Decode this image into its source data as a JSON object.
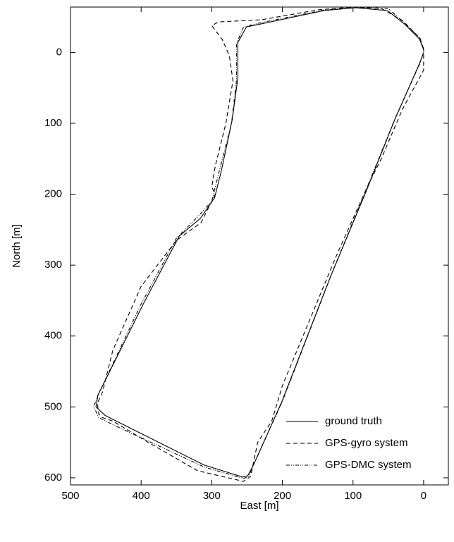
{
  "chart_data": {
    "type": "line",
    "xlabel": "East [m]",
    "ylabel": "North [m]",
    "xlim": [
      500,
      -35
    ],
    "xticks": [
      500,
      400,
      300,
      200,
      100,
      0
    ],
    "ylim": [
      610,
      -64
    ],
    "yticks": [
      0,
      100,
      200,
      300,
      400,
      500,
      600
    ],
    "legend": "lower right",
    "series": [
      {
        "name": "ground truth",
        "color": "#000000",
        "linestyle": "solid",
        "x": [
          0,
          6,
          26,
          51,
          96,
          141,
          226,
          251,
          263,
          263,
          271,
          286,
          296,
          316,
          346,
          396,
          461,
          464,
          451,
          431,
          311,
          256,
          249,
          241,
          201,
          131,
          81,
          41,
          6,
          0
        ],
        "values": [
          -4,
          -19,
          -39,
          -59,
          -63,
          -59,
          -41,
          -36,
          -14,
          36,
          95,
          165,
          205,
          234,
          259,
          353,
          483,
          500,
          512,
          522,
          582,
          599,
          597,
          582,
          493,
          314,
          195,
          95,
          16,
          0
        ]
      },
      {
        "name": "GPS-gyro system",
        "color": "#000000",
        "linestyle": "dashed",
        "x": [
          0,
          5,
          30,
          60,
          100,
          150,
          230,
          290,
          300,
          285,
          275,
          270,
          280,
          295,
          300,
          295,
          315,
          350,
          400,
          440,
          455,
          462,
          460,
          455,
          440,
          390,
          320,
          255,
          245,
          235,
          215,
          200,
          150,
          125,
          80,
          60,
          30,
          0,
          0
        ],
        "values": [
          -5,
          -20,
          -45,
          -62,
          -64,
          -60,
          -46,
          -43,
          -38,
          -18,
          5,
          40,
          100,
          160,
          190,
          200,
          240,
          265,
          330,
          420,
          480,
          495,
          510,
          515,
          520,
          550,
          590,
          605,
          598,
          550,
          520,
          470,
          350,
          290,
          190,
          150,
          80,
          25,
          -5
        ]
      },
      {
        "name": "GPS-DMC system",
        "color": "#000000",
        "linestyle": "dashdot",
        "x": [
          0,
          5,
          28,
          50,
          95,
          140,
          230,
          255,
          265,
          265,
          272,
          290,
          300,
          320,
          350,
          400,
          462,
          467,
          460,
          440,
          310,
          255,
          248,
          240,
          200,
          130,
          80,
          40,
          5,
          0
        ],
        "values": [
          -5,
          -20,
          -42,
          -62,
          -64,
          -60,
          -42,
          -36,
          -12,
          40,
          100,
          170,
          210,
          232,
          262,
          355,
          485,
          500,
          515,
          525,
          585,
          601,
          598,
          580,
          492,
          312,
          190,
          92,
          15,
          0
        ]
      }
    ]
  }
}
